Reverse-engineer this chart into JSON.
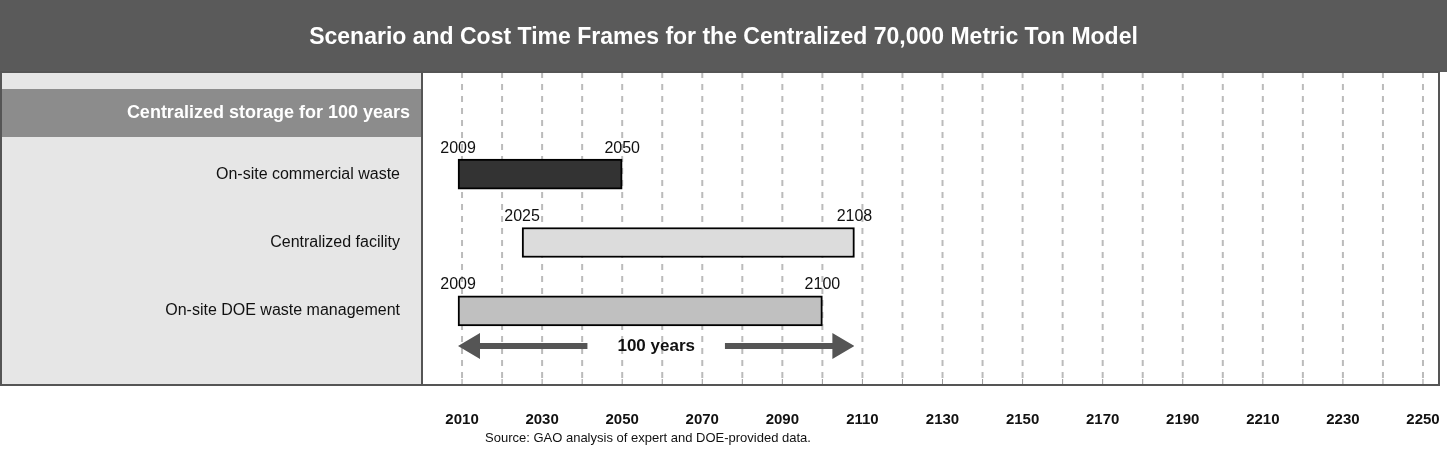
{
  "chart_data": {
    "type": "bar",
    "orientation": "horizontal",
    "title": "Scenario and Cost Time Frames for the Centralized 70,000 Metric Ton Model",
    "ylabel": "Centralized storage for 100 years",
    "categories": [
      "On-site commercial waste",
      "Centralized facility",
      "On-site DOE waste management"
    ],
    "base": [
      2009,
      2025,
      2009
    ],
    "values": [
      41,
      83,
      91
    ],
    "colors": [
      "#333333",
      "#dcdcdc",
      "#c0c0c0"
    ],
    "xlim": [
      2000,
      2254
    ],
    "xticks": [
      2010,
      {
        "value": 2020,
        "label": null
      },
      2030,
      {
        "value": 2040,
        "label": null
      },
      2050,
      {
        "value": 2060,
        "label": null
      },
      2070,
      {
        "value": 2080,
        "label": null
      },
      2090,
      {
        "value": 2100,
        "label": null
      },
      2110,
      {
        "value": 2120,
        "label": null
      },
      2130,
      {
        "value": 2140,
        "label": null
      },
      2150,
      {
        "value": 2160,
        "label": null
      },
      2170,
      {
        "value": 2180,
        "label": null
      },
      2190,
      {
        "value": 2200,
        "label": null
      },
      2210,
      {
        "value": 2220,
        "label": null
      },
      2230,
      {
        "value": 2240,
        "label": null
      },
      2250
    ],
    "grid": "x",
    "legend": false,
    "annotations": [
      {
        "text": "2009",
        "x": 2009,
        "y": "On-site commercial waste"
      },
      {
        "text": "2050",
        "x": 2050,
        "y": "On-site commercial waste"
      },
      {
        "text": "2025",
        "x": 2025,
        "y": "Centralized facility"
      },
      {
        "text": "2108",
        "x": 2108,
        "y": "Centralized facility"
      },
      {
        "text": "2009",
        "x": 2009,
        "y": "On-site DOE waste management"
      },
      {
        "text": "2100",
        "x": 2100,
        "y": "On-site DOE waste management"
      },
      "100 years",
      "Source: GAO analysis of expert and DOE-provided data."
    ]
  }
}
